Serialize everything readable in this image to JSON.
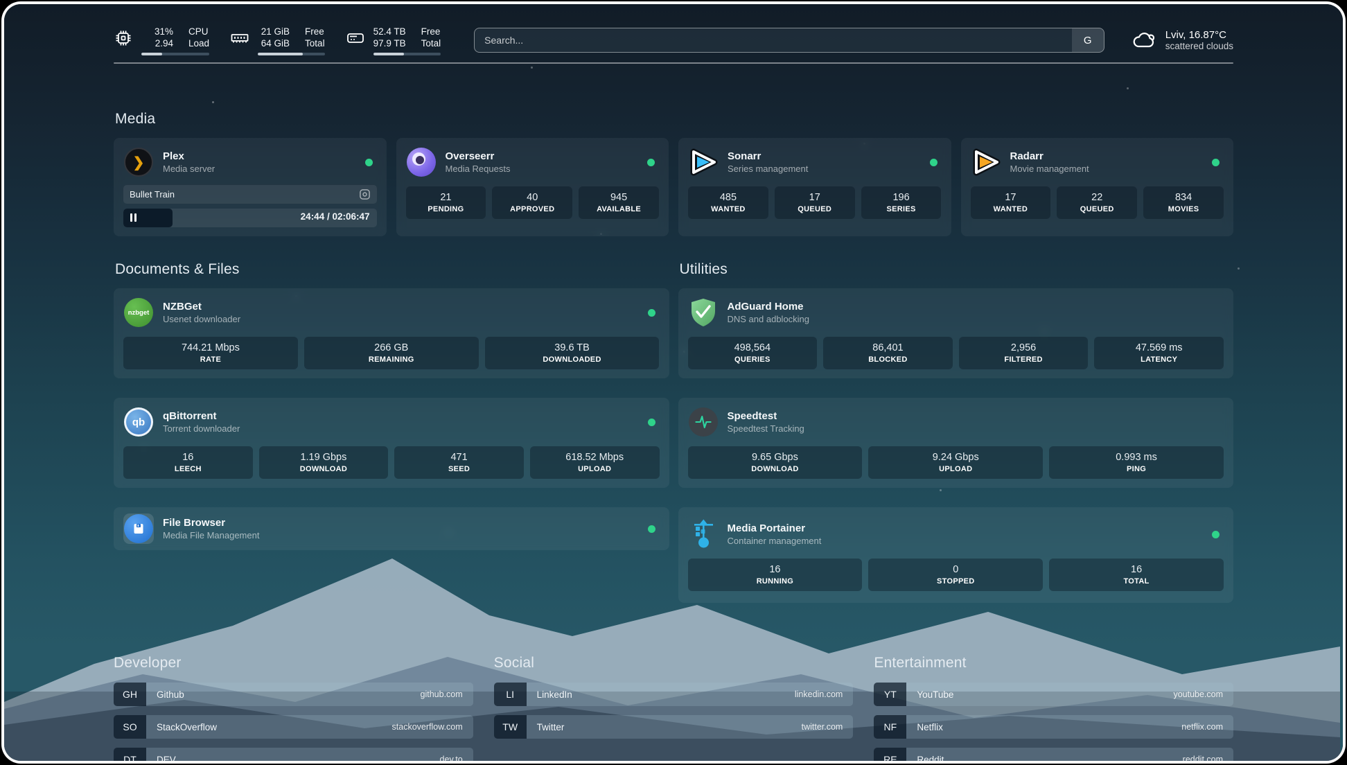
{
  "header": {
    "cpu": {
      "value_top": "31%",
      "value_bottom": "2.94",
      "label_top": "CPU",
      "label_bottom": "Load",
      "progress_pct": 31
    },
    "memory": {
      "value_top": "21 GiB",
      "value_bottom": "64 GiB",
      "label_top": "Free",
      "label_bottom": "Total",
      "progress_pct": 67
    },
    "disk": {
      "value_top": "52.4 TB",
      "value_bottom": "97.9 TB",
      "label_top": "Free",
      "label_bottom": "Total",
      "progress_pct": 46
    },
    "search": {
      "placeholder": "Search...",
      "button_label": "G"
    },
    "weather": {
      "location_temp": "Lviv, 16.87°C",
      "condition": "scattered clouds"
    }
  },
  "services": {
    "media": {
      "title": "Media",
      "plex": {
        "name": "Plex",
        "desc": "Media server",
        "status": "online",
        "now_playing": "Bullet Train",
        "time": "24:44 / 02:06:47",
        "progress_pct": 19.5
      },
      "overseerr": {
        "name": "Overseerr",
        "desc": "Media Requests",
        "status": "online",
        "stats": [
          {
            "value": "21",
            "label": "PENDING"
          },
          {
            "value": "40",
            "label": "APPROVED"
          },
          {
            "value": "945",
            "label": "AVAILABLE"
          }
        ]
      },
      "sonarr": {
        "name": "Sonarr",
        "desc": "Series management",
        "status": "online",
        "stats": [
          {
            "value": "485",
            "label": "WANTED"
          },
          {
            "value": "17",
            "label": "QUEUED"
          },
          {
            "value": "196",
            "label": "SERIES"
          }
        ]
      },
      "radarr": {
        "name": "Radarr",
        "desc": "Movie management",
        "status": "online",
        "stats": [
          {
            "value": "17",
            "label": "WANTED"
          },
          {
            "value": "22",
            "label": "QUEUED"
          },
          {
            "value": "834",
            "label": "MOVIES"
          }
        ]
      }
    },
    "documents": {
      "title": "Documents & Files",
      "nzbget": {
        "name": "NZBGet",
        "desc": "Usenet downloader",
        "status": "online",
        "icon_text": "nzbget",
        "stats": [
          {
            "value": "744.21 Mbps",
            "label": "RATE"
          },
          {
            "value": "266 GB",
            "label": "REMAINING"
          },
          {
            "value": "39.6 TB",
            "label": "DOWNLOADED"
          }
        ]
      },
      "qbittorrent": {
        "name": "qBittorrent",
        "desc": "Torrent downloader",
        "status": "online",
        "icon_text": "qb",
        "stats": [
          {
            "value": "16",
            "label": "LEECH"
          },
          {
            "value": "1.19 Gbps",
            "label": "DOWNLOAD"
          },
          {
            "value": "471",
            "label": "SEED"
          },
          {
            "value": "618.52 Mbps",
            "label": "UPLOAD"
          }
        ]
      },
      "filebrowser": {
        "name": "File Browser",
        "desc": "Media File Management",
        "status": "online"
      }
    },
    "utilities": {
      "title": "Utilities",
      "adguard": {
        "name": "AdGuard Home",
        "desc": "DNS and adblocking",
        "stats": [
          {
            "value": "498,564",
            "label": "QUERIES"
          },
          {
            "value": "86,401",
            "label": "BLOCKED"
          },
          {
            "value": "2,956",
            "label": "FILTERED"
          },
          {
            "value": "47.569 ms",
            "label": "LATENCY"
          }
        ]
      },
      "speedtest": {
        "name": "Speedtest",
        "desc": "Speedtest Tracking",
        "stats": [
          {
            "value": "9.65 Gbps",
            "label": "DOWNLOAD"
          },
          {
            "value": "9.24 Gbps",
            "label": "UPLOAD"
          },
          {
            "value": "0.993 ms",
            "label": "PING"
          }
        ]
      },
      "portainer": {
        "name": "Media Portainer",
        "desc": "Container management",
        "status": "online",
        "stats": [
          {
            "value": "16",
            "label": "RUNNING"
          },
          {
            "value": "0",
            "label": "STOPPED"
          },
          {
            "value": "16",
            "label": "TOTAL"
          }
        ]
      }
    }
  },
  "bookmarks": {
    "developer": {
      "title": "Developer",
      "items": [
        {
          "abbr": "GH",
          "name": "Github",
          "url": "github.com"
        },
        {
          "abbr": "SO",
          "name": "StackOverflow",
          "url": "stackoverflow.com"
        },
        {
          "abbr": "DT",
          "name": "DEV",
          "url": "dev.to"
        }
      ]
    },
    "social": {
      "title": "Social",
      "items": [
        {
          "abbr": "LI",
          "name": "LinkedIn",
          "url": "linkedin.com"
        },
        {
          "abbr": "TW",
          "name": "Twitter",
          "url": "twitter.com"
        }
      ]
    },
    "entertainment": {
      "title": "Entertainment",
      "items": [
        {
          "abbr": "YT",
          "name": "YouTube",
          "url": "youtube.com"
        },
        {
          "abbr": "NF",
          "name": "Netflix",
          "url": "netflix.com"
        },
        {
          "abbr": "RE",
          "name": "Reddit",
          "url": "reddit.com"
        }
      ]
    }
  },
  "colors": {
    "status_ok": "#2fd38a",
    "plex_accent": "#e5a00d",
    "sonarr_accent": "#38bdf8",
    "radarr_accent": "#f5a623",
    "speedtest_accent": "#2dd4a0",
    "portainer_accent": "#29abe2"
  }
}
